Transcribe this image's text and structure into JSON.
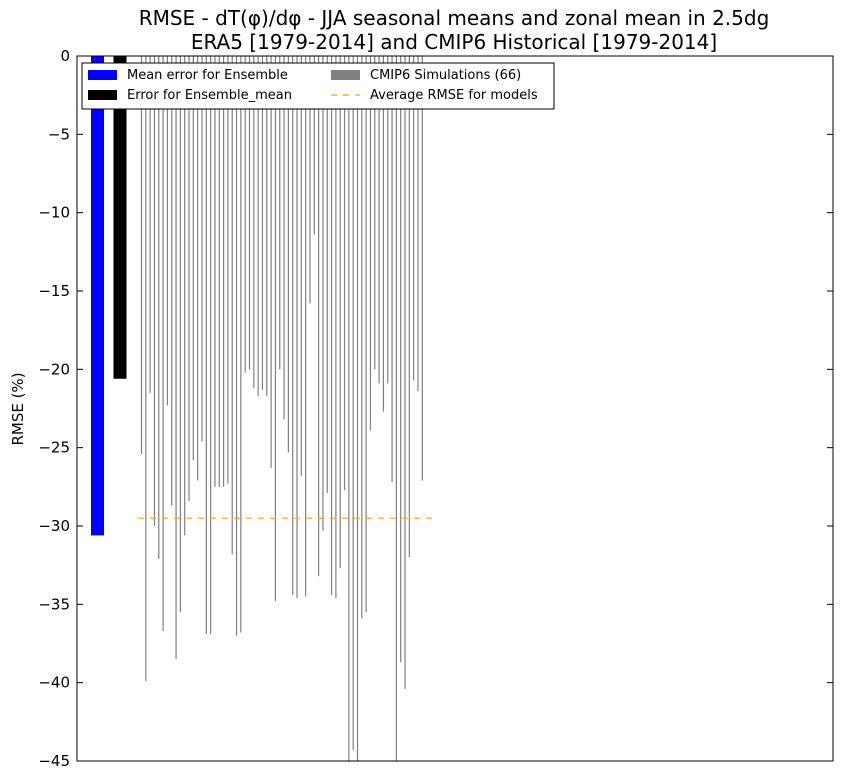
{
  "chart_data": {
    "type": "bar",
    "title_lines": [
      "RMSE - dT(φ)/dφ - JJA seasonal means and zonal mean in 2.5dg",
      "ERA5 [1979-2014] and CMIP6 Historical [1979-2014]"
    ],
    "ylabel": "RMSE (%)",
    "xlabel": "",
    "ylim": [
      -45,
      0
    ],
    "yticks": [
      0,
      -5,
      -10,
      -15,
      -20,
      -25,
      -30,
      -35,
      -40,
      -45
    ],
    "ytick_labels": [
      "0",
      "−5",
      "−10",
      "−15",
      "−20",
      "−25",
      "−30",
      "−35",
      "−40",
      "−45"
    ],
    "grid": false,
    "legend_placement": "top-left",
    "legend": [
      {
        "label": "Mean error for Ensemble",
        "color": "#0000ff",
        "kind": "bar"
      },
      {
        "label": "Error for Ensemble_mean",
        "color": "#000000",
        "kind": "bar"
      },
      {
        "label": "CMIP6 Simulations (66)",
        "color": "#808080",
        "kind": "bar"
      },
      {
        "label": "Average RMSE for models",
        "color": "#ffa500",
        "kind": "dashed-line"
      }
    ],
    "series": [
      {
        "name": "Mean error for Ensemble",
        "color": "#0000ff",
        "values": [
          -30.6
        ]
      },
      {
        "name": "Error for Ensemble_mean",
        "color": "#000000",
        "values": [
          -20.6
        ]
      },
      {
        "name": "CMIP6 Simulations (66)",
        "color": "#808080",
        "values": [
          -25.4,
          -39.9,
          -21.5,
          -30.0,
          -32.1,
          -36.7,
          -22.3,
          -28.7,
          -38.5,
          -35.5,
          -30.6,
          -28.4,
          -25.8,
          -27.1,
          -24.6,
          -36.9,
          -36.9,
          -27.5,
          -27.5,
          -27.5,
          -27.3,
          -31.8,
          -37.0,
          -36.8,
          -20.2,
          -20.0,
          -21.2,
          -21.7,
          -21.3,
          -21.7,
          -26.3,
          -34.8,
          -20.0,
          -23.2,
          -25.3,
          -34.4,
          -34.6,
          -26.8,
          -34.5,
          -15.8,
          -11.4,
          -33.2,
          -30.3,
          -27.9,
          -34.4,
          -34.6,
          -32.7,
          -27.7,
          -45.0,
          -44.3,
          -45.0,
          -35.9,
          -35.5,
          -23.9,
          -20.0,
          -20.9,
          -22.7,
          -20.9,
          -27.2,
          -45.0,
          -38.7,
          -40.4,
          -32.0,
          -20.7,
          -21.4,
          -27.1
        ]
      },
      {
        "name": "Average RMSE for models",
        "color": "#ffa500",
        "values": [
          -29.5
        ]
      }
    ]
  }
}
